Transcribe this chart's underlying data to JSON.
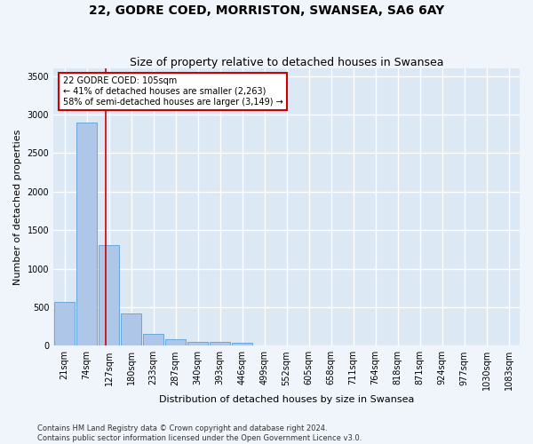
{
  "title": "22, GODRE COED, MORRISTON, SWANSEA, SA6 6AY",
  "subtitle": "Size of property relative to detached houses in Swansea",
  "xlabel": "Distribution of detached houses by size in Swansea",
  "ylabel": "Number of detached properties",
  "bin_labels": [
    "21sqm",
    "74sqm",
    "127sqm",
    "180sqm",
    "233sqm",
    "287sqm",
    "340sqm",
    "393sqm",
    "446sqm",
    "499sqm",
    "552sqm",
    "605sqm",
    "658sqm",
    "711sqm",
    "764sqm",
    "818sqm",
    "871sqm",
    "924sqm",
    "977sqm",
    "1030sqm",
    "1083sqm"
  ],
  "bar_heights": [
    570,
    2900,
    1310,
    415,
    155,
    80,
    55,
    45,
    40,
    0,
    0,
    0,
    0,
    0,
    0,
    0,
    0,
    0,
    0,
    0,
    0
  ],
  "bar_color": "#aec6e8",
  "bar_edge_color": "#5a9fd4",
  "ylim": [
    0,
    3600
  ],
  "yticks": [
    0,
    500,
    1000,
    1500,
    2000,
    2500,
    3000,
    3500
  ],
  "property_line_x": 1.85,
  "property_line_color": "#cc0000",
  "annotation_text": "22 GODRE COED: 105sqm\n← 41% of detached houses are smaller (2,263)\n58% of semi-detached houses are larger (3,149) →",
  "annotation_box_color": "#ffffff",
  "annotation_box_edge": "#cc0000",
  "footer": "Contains HM Land Registry data © Crown copyright and database right 2024.\nContains public sector information licensed under the Open Government Licence v3.0.",
  "bg_color": "#dde8f5",
  "fig_bg_color": "#f0f4fb",
  "grid_color": "#ffffff",
  "title_fontsize": 10,
  "subtitle_fontsize": 9,
  "axis_label_fontsize": 8,
  "tick_fontsize": 7,
  "footer_fontsize": 6
}
